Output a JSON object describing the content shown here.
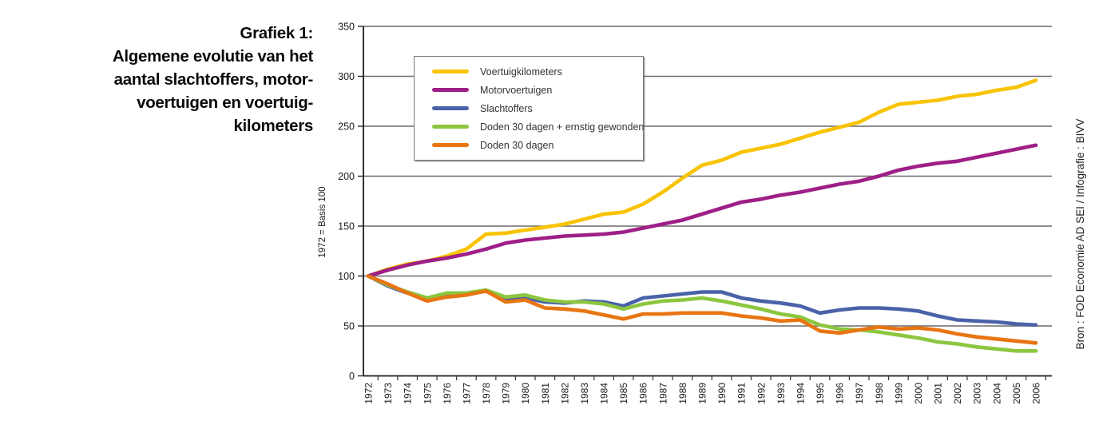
{
  "title": {
    "lines": [
      "Grafiek 1:",
      "Algemene evolutie van het",
      "aantal slachtoffers, motor-",
      "voertuigen en voertuig-",
      "kilometers"
    ]
  },
  "source_note": "Bron :  FOD Economie AD SEI / Infografie : BIVV",
  "chart_data": {
    "type": "line",
    "title": "Grafiek 1: Algemene evolutie van het aantal slachtoffers, motorvoertuigen en voertuigkilometers",
    "xlabel": "",
    "ylabel": "1972 = Basis 100",
    "ylim": [
      0,
      350
    ],
    "ytick_step": 50,
    "grid": true,
    "legend_position": "top-left-inside",
    "x": [
      1972,
      1973,
      1974,
      1975,
      1976,
      1977,
      1978,
      1979,
      1980,
      1981,
      1982,
      1983,
      1984,
      1985,
      1986,
      1987,
      1988,
      1989,
      1990,
      1991,
      1992,
      1993,
      1994,
      1995,
      1996,
      1997,
      1998,
      1999,
      2000,
      2001,
      2002,
      2003,
      2004,
      2005,
      2006
    ],
    "series": [
      {
        "name": "Voertuigkilometers",
        "color": "#F8C301",
        "values": [
          100,
          107,
          112,
          115,
          120,
          127,
          142,
          143,
          146,
          149,
          152,
          157,
          162,
          164,
          172,
          184,
          198,
          211,
          216,
          224,
          228,
          232,
          238,
          244,
          249,
          254,
          264,
          272,
          274,
          276,
          280,
          282,
          286,
          289,
          296
        ]
      },
      {
        "name": "Motorvoertuigen",
        "color": "#9E1F87",
        "values": [
          100,
          106,
          111,
          115,
          118,
          122,
          127,
          133,
          136,
          138,
          140,
          141,
          142,
          144,
          148,
          152,
          156,
          162,
          168,
          174,
          177,
          181,
          184,
          188,
          192,
          195,
          200,
          206,
          210,
          213,
          215,
          219,
          223,
          227,
          231
        ]
      },
      {
        "name": "Slachtoffers",
        "color": "#4A62A8",
        "values": [
          100,
          90,
          83,
          78,
          82,
          82,
          85,
          77,
          78,
          74,
          73,
          75,
          74,
          70,
          78,
          80,
          82,
          84,
          84,
          78,
          75,
          73,
          70,
          63,
          66,
          68,
          68,
          67,
          65,
          60,
          56,
          55,
          54,
          52,
          51
        ]
      },
      {
        "name": "Doden 30 dagen + ernstig gewonden",
        "color": "#8CC63F",
        "values": [
          100,
          91,
          84,
          78,
          83,
          83,
          86,
          79,
          81,
          76,
          74,
          74,
          72,
          67,
          72,
          75,
          76,
          78,
          75,
          71,
          67,
          62,
          59,
          51,
          47,
          46,
          44,
          41,
          38,
          34,
          32,
          29,
          27,
          25,
          25
        ]
      },
      {
        "name": "Doden 30 dagen",
        "color": "#E87511",
        "values": [
          100,
          92,
          83,
          75,
          79,
          81,
          85,
          74,
          76,
          68,
          67,
          65,
          61,
          57,
          62,
          62,
          63,
          63,
          63,
          60,
          58,
          55,
          56,
          45,
          43,
          46,
          49,
          47,
          48,
          46,
          42,
          39,
          37,
          35,
          33
        ]
      }
    ],
    "axis_colors": {
      "grid": "#6a6a6a",
      "axis": "#1a1a1a",
      "tick_label": "#1a1a1a"
    }
  }
}
